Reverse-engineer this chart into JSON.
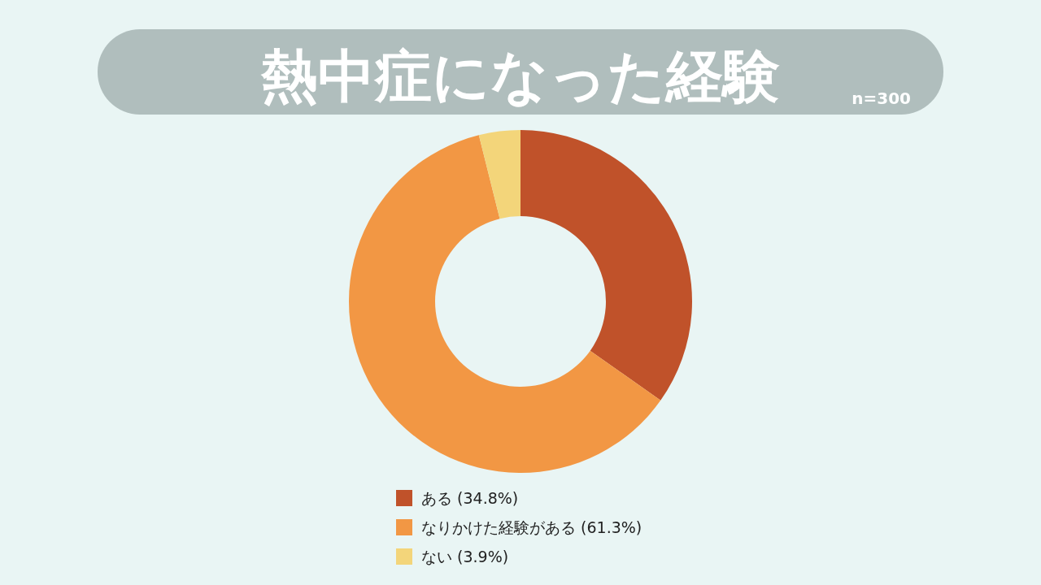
{
  "chart_data": {
    "type": "donut",
    "title": "熱中症になった経験",
    "subtitle": "n=300",
    "categories": [
      "ある (34.8%)",
      "なりかけた経験がある (61.3%)",
      "ない (3.9%)"
    ],
    "values": [
      34.8,
      61.3,
      3.9
    ],
    "colors": [
      "#c0522a",
      "#f29744",
      "#f3d57a"
    ],
    "legend": "bottom"
  }
}
